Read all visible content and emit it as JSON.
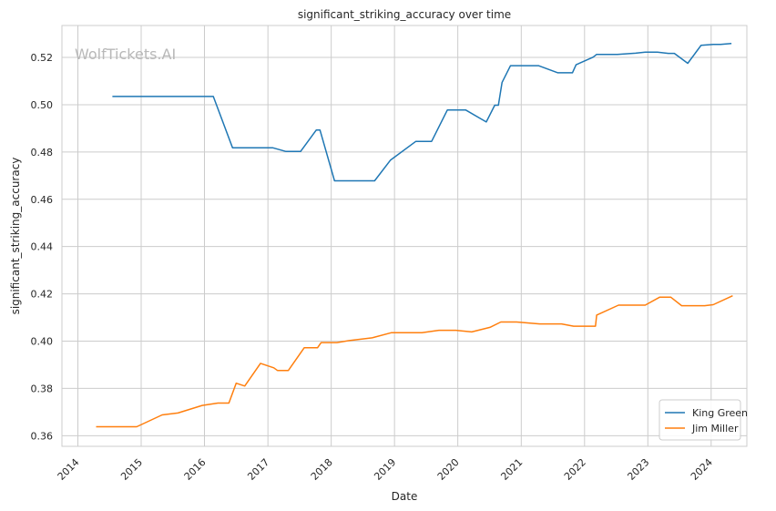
{
  "watermark": "WolfTickets.AI",
  "chart_data": {
    "type": "line",
    "title": "significant_striking_accuracy over time",
    "xlabel": "Date",
    "ylabel": "significant_striking_accuracy",
    "xlim": [
      "2013-10-01",
      "2024-07-25"
    ],
    "ylim": [
      0.3555,
      0.5335
    ],
    "x_ticks": [
      "2014",
      "2015",
      "2016",
      "2017",
      "2018",
      "2019",
      "2020",
      "2021",
      "2022",
      "2023",
      "2024"
    ],
    "y_ticks": [
      0.36,
      0.38,
      0.4,
      0.42,
      0.44,
      0.46,
      0.48,
      0.5,
      0.52
    ],
    "y_tick_labels": [
      "0.36",
      "0.38",
      "0.40",
      "0.42",
      "0.44",
      "0.46",
      "0.48",
      "0.50",
      "0.52"
    ],
    "grid": true,
    "legend_position": "lower-right",
    "series": [
      {
        "name": "King Green",
        "color": "#1f77b4",
        "points": [
          [
            "2014-07-19",
            0.5035
          ],
          [
            "2016-02-21",
            0.5035
          ],
          [
            "2016-06-11",
            0.4818
          ],
          [
            "2017-01-28",
            0.4818
          ],
          [
            "2017-04-15",
            0.4802
          ],
          [
            "2017-07-08",
            0.4802
          ],
          [
            "2017-10-07",
            0.4893
          ],
          [
            "2017-10-28",
            0.4893
          ],
          [
            "2018-01-20",
            0.4678
          ],
          [
            "2018-09-08",
            0.4678
          ],
          [
            "2018-12-08",
            0.4765
          ],
          [
            "2019-05-04",
            0.4845
          ],
          [
            "2019-08-03",
            0.4845
          ],
          [
            "2019-11-02",
            0.4978
          ],
          [
            "2020-02-15",
            0.4978
          ],
          [
            "2020-06-13",
            0.4927
          ],
          [
            "2020-08-01",
            0.4998
          ],
          [
            "2020-08-22",
            0.4998
          ],
          [
            "2020-09-12",
            0.5094
          ],
          [
            "2020-10-31",
            0.5165
          ],
          [
            "2021-04-10",
            0.5165
          ],
          [
            "2021-07-31",
            0.5135
          ],
          [
            "2021-10-23",
            0.5135
          ],
          [
            "2021-11-13",
            0.5169
          ],
          [
            "2022-02-19",
            0.5201
          ],
          [
            "2022-03-12",
            0.5213
          ],
          [
            "2022-07-09",
            0.5213
          ],
          [
            "2022-10-22",
            0.5218
          ],
          [
            "2022-12-17",
            0.5222
          ],
          [
            "2023-02-25",
            0.5222
          ],
          [
            "2023-04-29",
            0.5217
          ],
          [
            "2023-06-03",
            0.5217
          ],
          [
            "2023-08-19",
            0.5175
          ],
          [
            "2023-11-04",
            0.5251
          ],
          [
            "2024-01-13",
            0.5255
          ],
          [
            "2024-02-24",
            0.5255
          ],
          [
            "2024-04-27",
            0.5259
          ]
        ]
      },
      {
        "name": "Jim Miller",
        "color": "#ff7f0e",
        "points": [
          [
            "2014-04-16",
            0.3638
          ],
          [
            "2014-12-06",
            0.3638
          ],
          [
            "2015-05-02",
            0.3688
          ],
          [
            "2015-08-01",
            0.3696
          ],
          [
            "2015-12-19",
            0.3728
          ],
          [
            "2016-03-19",
            0.3738
          ],
          [
            "2016-05-21",
            0.3738
          ],
          [
            "2016-07-02",
            0.3822
          ],
          [
            "2016-08-20",
            0.381
          ],
          [
            "2016-11-19",
            0.3906
          ],
          [
            "2017-02-04",
            0.3887
          ],
          [
            "2017-02-25",
            0.3876
          ],
          [
            "2017-04-29",
            0.3876
          ],
          [
            "2017-07-29",
            0.3972
          ],
          [
            "2017-10-14",
            0.3972
          ],
          [
            "2017-11-04",
            0.3994
          ],
          [
            "2018-02-03",
            0.3994
          ],
          [
            "2018-04-21",
            0.4003
          ],
          [
            "2018-08-25",
            0.4014
          ],
          [
            "2018-12-15",
            0.4036
          ],
          [
            "2019-06-08",
            0.4036
          ],
          [
            "2019-09-14",
            0.4046
          ],
          [
            "2019-12-21",
            0.4046
          ],
          [
            "2020-03-21",
            0.4039
          ],
          [
            "2020-07-04",
            0.4058
          ],
          [
            "2020-09-05",
            0.4081
          ],
          [
            "2020-12-05",
            0.4081
          ],
          [
            "2021-04-17",
            0.4073
          ],
          [
            "2021-08-21",
            0.4073
          ],
          [
            "2021-10-30",
            0.4063
          ],
          [
            "2022-03-05",
            0.4063
          ],
          [
            "2022-03-12",
            0.411
          ],
          [
            "2022-07-16",
            0.4152
          ],
          [
            "2022-12-17",
            0.4152
          ],
          [
            "2023-03-11",
            0.4186
          ],
          [
            "2023-05-13",
            0.4186
          ],
          [
            "2023-07-15",
            0.415
          ],
          [
            "2023-11-25",
            0.415
          ],
          [
            "2024-01-13",
            0.4154
          ],
          [
            "2024-05-04",
            0.4192
          ]
        ]
      }
    ]
  }
}
